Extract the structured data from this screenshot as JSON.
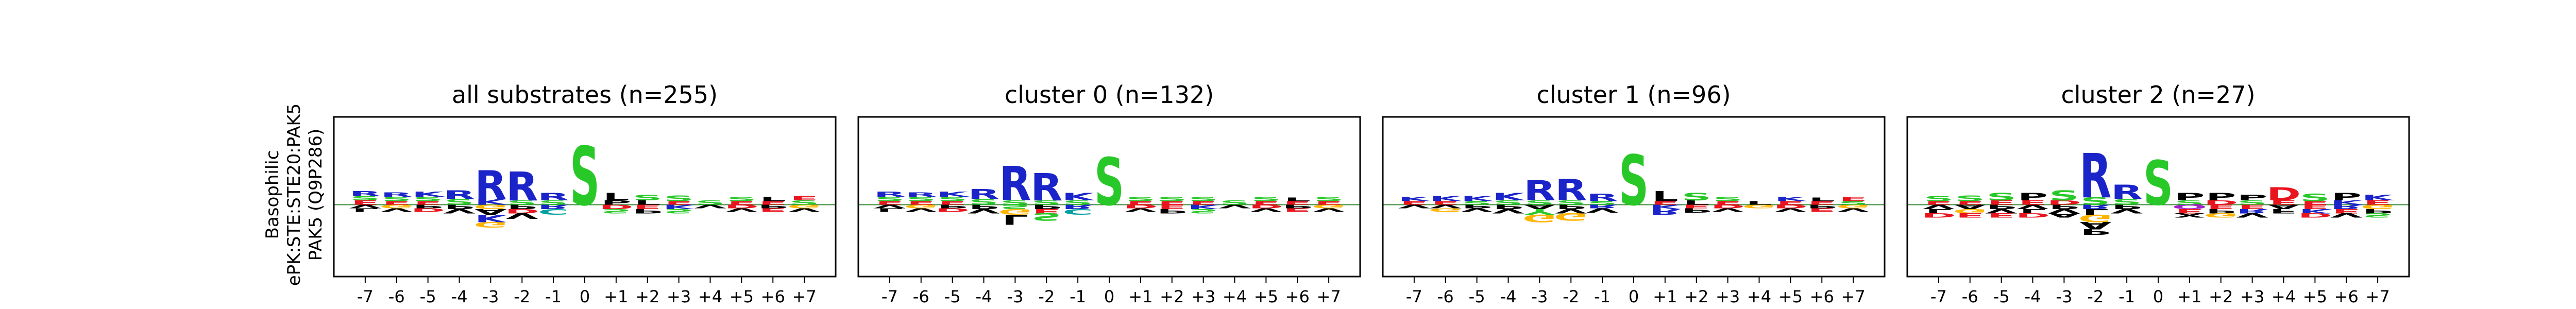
{
  "figure": {
    "ylabel_lines": [
      "Basophilic",
      "ePK:STE:STE20:PAK5",
      "PAK5 (Q9P286)"
    ]
  },
  "colors": {
    "basic_RK": "#1a24c8",
    "acidic_DE": "#e8141e",
    "polar_ST": "#28c828",
    "amide_NQ": "#a020c8",
    "hydrophobic": "#000000",
    "gly": "#ffb400",
    "cys": "#00a0a0",
    "his": "#6464ff",
    "baseline": "#3a8c3a",
    "frame": "#000000"
  },
  "chart_data": [
    {
      "type": "sequence-logo",
      "title": "all substrates (n=255)",
      "x": [
        "-7",
        "-6",
        "-5",
        "-4",
        "-3",
        "-2",
        "-1",
        "0",
        "+1",
        "+2",
        "+3",
        "+4",
        "+5",
        "+6",
        "+7"
      ],
      "grid": false,
      "positive": [
        [
          [
            "E",
            0.06
          ],
          [
            "S",
            0.06
          ],
          [
            "R",
            0.07
          ]
        ],
        [
          [
            "E",
            0.05
          ],
          [
            "S",
            0.06
          ],
          [
            "R",
            0.06
          ]
        ],
        [
          [
            "E",
            0.05
          ],
          [
            "S",
            0.06
          ],
          [
            "K",
            0.07
          ]
        ],
        [
          [
            "S",
            0.08
          ],
          [
            "R",
            0.12
          ]
        ],
        [
          [
            "K",
            0.08
          ],
          [
            "R",
            0.4
          ]
        ],
        [
          [
            "S",
            0.06
          ],
          [
            "R",
            0.4
          ]
        ],
        [
          [
            "S",
            0.06
          ],
          [
            "R",
            0.1
          ]
        ],
        [
          [
            "S",
            0.82
          ]
        ],
        [
          [
            "P",
            0.06
          ],
          [
            "L",
            0.1
          ]
        ],
        [
          [
            "L",
            0.06
          ],
          [
            "S",
            0.08
          ]
        ],
        [
          [
            "E",
            0.05
          ],
          [
            "S",
            0.08
          ]
        ],
        [
          [
            "S",
            0.06
          ]
        ],
        [
          [
            "E",
            0.05
          ],
          [
            "S",
            0.06
          ]
        ],
        [
          [
            "E",
            0.05
          ],
          [
            "L",
            0.06
          ]
        ],
        [
          [
            "S",
            0.06
          ],
          [
            "E",
            0.06
          ]
        ]
      ],
      "negative": [
        [
          [
            "V",
            0.05
          ],
          [
            "L",
            0.05
          ]
        ],
        [
          [
            "G",
            0.05
          ],
          [
            "V",
            0.05
          ]
        ],
        [
          [
            "P",
            0.05
          ],
          [
            "D",
            0.05
          ]
        ],
        [
          [
            "P",
            0.06
          ],
          [
            "V",
            0.06
          ]
        ],
        [
          [
            "G",
            0.06
          ],
          [
            "A",
            0.08
          ],
          [
            "K",
            0.1
          ],
          [
            "G",
            0.08
          ]
        ],
        [
          [
            "P",
            0.06
          ],
          [
            "D",
            0.06
          ],
          [
            "V",
            0.08
          ]
        ],
        [
          [
            "R",
            0.06
          ],
          [
            "C",
            0.08
          ]
        ],
        [],
        [
          [
            "D",
            0.06
          ],
          [
            "S",
            0.06
          ]
        ],
        [
          [
            "E",
            0.06
          ],
          [
            "P",
            0.06
          ]
        ],
        [
          [
            "K",
            0.06
          ],
          [
            "S",
            0.06
          ]
        ],
        [
          [
            "V",
            0.05
          ]
        ],
        [
          [
            "D",
            0.05
          ],
          [
            "V",
            0.05
          ]
        ],
        [
          [
            "P",
            0.05
          ],
          [
            "E",
            0.05
          ]
        ],
        [
          [
            "G",
            0.05
          ],
          [
            "V",
            0.05
          ]
        ]
      ]
    },
    {
      "type": "sequence-logo",
      "title": "cluster 0 (n=132)",
      "x": [
        "-7",
        "-6",
        "-5",
        "-4",
        "-3",
        "-2",
        "-1",
        "0",
        "+1",
        "+2",
        "+3",
        "+4",
        "+5",
        "+6",
        "+7"
      ],
      "grid": false,
      "positive": [
        [
          [
            "E",
            0.05
          ],
          [
            "S",
            0.06
          ],
          [
            "R",
            0.07
          ]
        ],
        [
          [
            "E",
            0.05
          ],
          [
            "S",
            0.06
          ],
          [
            "R",
            0.06
          ]
        ],
        [
          [
            "E",
            0.05
          ],
          [
            "S",
            0.06
          ],
          [
            "K",
            0.07
          ]
        ],
        [
          [
            "S",
            0.08
          ],
          [
            "R",
            0.14
          ]
        ],
        [
          [
            "S",
            0.06
          ],
          [
            "R",
            0.48
          ]
        ],
        [
          [
            "S",
            0.06
          ],
          [
            "R",
            0.38
          ]
        ],
        [
          [
            "S",
            0.06
          ],
          [
            "K",
            0.1
          ]
        ],
        [
          [
            "S",
            0.66
          ]
        ],
        [
          [
            "E",
            0.05
          ],
          [
            "S",
            0.06
          ]
        ],
        [
          [
            "E",
            0.05
          ],
          [
            "S",
            0.06
          ]
        ],
        [
          [
            "E",
            0.05
          ],
          [
            "S",
            0.06
          ]
        ],
        [
          [
            "S",
            0.06
          ]
        ],
        [
          [
            "E",
            0.05
          ],
          [
            "S",
            0.06
          ]
        ],
        [
          [
            "E",
            0.05
          ],
          [
            "L",
            0.05
          ]
        ],
        [
          [
            "E",
            0.05
          ],
          [
            "S",
            0.06
          ]
        ]
      ],
      "negative": [
        [
          [
            "V",
            0.05
          ],
          [
            "L",
            0.05
          ]
        ],
        [
          [
            "G",
            0.05
          ],
          [
            "V",
            0.05
          ]
        ],
        [
          [
            "P",
            0.05
          ],
          [
            "D",
            0.05
          ]
        ],
        [
          [
            "P",
            0.06
          ],
          [
            "V",
            0.06
          ]
        ],
        [
          [
            "S",
            0.06
          ],
          [
            "G",
            0.08
          ],
          [
            "L",
            0.14
          ]
        ],
        [
          [
            "P",
            0.06
          ],
          [
            "E",
            0.06
          ],
          [
            "S",
            0.1
          ]
        ],
        [
          [
            "R",
            0.06
          ],
          [
            "C",
            0.08
          ]
        ],
        [],
        [
          [
            "D",
            0.05
          ],
          [
            "V",
            0.05
          ]
        ],
        [
          [
            "E",
            0.06
          ],
          [
            "P",
            0.06
          ]
        ],
        [
          [
            "K",
            0.06
          ],
          [
            "S",
            0.06
          ]
        ],
        [
          [
            "V",
            0.05
          ]
        ],
        [
          [
            "D",
            0.05
          ],
          [
            "V",
            0.05
          ]
        ],
        [
          [
            "P",
            0.05
          ],
          [
            "E",
            0.05
          ]
        ],
        [
          [
            "G",
            0.05
          ],
          [
            "V",
            0.05
          ]
        ]
      ]
    },
    {
      "type": "sequence-logo",
      "title": "cluster 1 (n=96)",
      "x": [
        "-7",
        "-6",
        "-5",
        "-4",
        "-3",
        "-2",
        "-1",
        "0",
        "+1",
        "+2",
        "+3",
        "+4",
        "+5",
        "+6",
        "+7"
      ],
      "grid": false,
      "positive": [
        [
          [
            "E",
            0.05
          ],
          [
            "K",
            0.06
          ]
        ],
        [
          [
            "E",
            0.05
          ],
          [
            "K",
            0.07
          ]
        ],
        [
          [
            "S",
            0.05
          ],
          [
            "K",
            0.07
          ]
        ],
        [
          [
            "S",
            0.06
          ],
          [
            "K",
            0.1
          ]
        ],
        [
          [
            "S",
            0.06
          ],
          [
            "R",
            0.28
          ]
        ],
        [
          [
            "S",
            0.06
          ],
          [
            "R",
            0.3
          ]
        ],
        [
          [
            "S",
            0.05
          ],
          [
            "R",
            0.1
          ]
        ],
        [
          [
            "S",
            0.7
          ]
        ],
        [
          [
            "E",
            0.05
          ],
          [
            "L",
            0.14
          ]
        ],
        [
          [
            "L",
            0.06
          ],
          [
            "S",
            0.1
          ]
        ],
        [
          [
            "E",
            0.05
          ],
          [
            "S",
            0.06
          ]
        ],
        [
          [
            "L",
            0.05
          ]
        ],
        [
          [
            "E",
            0.05
          ],
          [
            "K",
            0.06
          ]
        ],
        [
          [
            "E",
            0.05
          ],
          [
            "L",
            0.05
          ]
        ],
        [
          [
            "S",
            0.05
          ],
          [
            "E",
            0.06
          ]
        ]
      ],
      "negative": [
        [
          [
            "V",
            0.05
          ]
        ],
        [
          [
            "V",
            0.05
          ],
          [
            "G",
            0.05
          ]
        ],
        [
          [
            "P",
            0.05
          ],
          [
            "V",
            0.05
          ]
        ],
        [
          [
            "P",
            0.06
          ],
          [
            "V",
            0.06
          ]
        ],
        [
          [
            "A",
            0.06
          ],
          [
            "Y",
            0.08
          ],
          [
            "G",
            0.1
          ]
        ],
        [
          [
            "P",
            0.06
          ],
          [
            "V",
            0.06
          ],
          [
            "G",
            0.1
          ]
        ],
        [
          [
            "R",
            0.05
          ],
          [
            "V",
            0.06
          ]
        ],
        [],
        [
          [
            "K",
            0.06
          ],
          [
            "R",
            0.08
          ]
        ],
        [
          [
            "E",
            0.05
          ],
          [
            "P",
            0.06
          ]
        ],
        [
          [
            "D",
            0.05
          ],
          [
            "V",
            0.05
          ]
        ],
        [
          [
            "G",
            0.05
          ]
        ],
        [
          [
            "D",
            0.05
          ],
          [
            "V",
            0.05
          ]
        ],
        [
          [
            "P",
            0.05
          ],
          [
            "E",
            0.05
          ]
        ],
        [
          [
            "G",
            0.05
          ],
          [
            "V",
            0.05
          ]
        ]
      ]
    },
    {
      "type": "sequence-logo",
      "title": "cluster 2 (n=27)",
      "x": [
        "-7",
        "-6",
        "-5",
        "-4",
        "-3",
        "-2",
        "-1",
        "0",
        "+1",
        "+2",
        "+3",
        "+4",
        "+5",
        "+6",
        "+7"
      ],
      "grid": false,
      "positive": [
        [
          [
            "E",
            0.05
          ],
          [
            "S",
            0.07
          ]
        ],
        [
          [
            "E",
            0.05
          ],
          [
            "S",
            0.08
          ]
        ],
        [
          [
            "E",
            0.06
          ],
          [
            "S",
            0.1
          ]
        ],
        [
          [
            "E",
            0.06
          ],
          [
            "P",
            0.1
          ]
        ],
        [
          [
            "D",
            0.06
          ],
          [
            "S",
            0.14
          ]
        ],
        [
          [
            "S",
            0.1
          ],
          [
            "R",
            0.62
          ]
        ],
        [
          [
            "S",
            0.08
          ],
          [
            "R",
            0.2
          ]
        ],
        [
          [
            "S",
            0.62
          ]
        ],
        [
          [
            "S",
            0.06
          ],
          [
            "P",
            0.1
          ]
        ],
        [
          [
            "D",
            0.06
          ],
          [
            "P",
            0.1
          ]
        ],
        [
          [
            "S",
            0.06
          ],
          [
            "P",
            0.08
          ]
        ],
        [
          [
            "E",
            0.06
          ],
          [
            "D",
            0.18
          ]
        ],
        [
          [
            "E",
            0.05
          ],
          [
            "S",
            0.1
          ]
        ],
        [
          [
            "K",
            0.06
          ],
          [
            "P",
            0.1
          ]
        ],
        [
          [
            "E",
            0.06
          ],
          [
            "K",
            0.08
          ]
        ]
      ],
      "negative": [
        [
          [
            "V",
            0.06
          ],
          [
            "L",
            0.06
          ],
          [
            "D",
            0.06
          ]
        ],
        [
          [
            "A",
            0.06
          ],
          [
            "G",
            0.06
          ],
          [
            "E",
            0.06
          ]
        ],
        [
          [
            "P",
            0.06
          ],
          [
            "V",
            0.06
          ],
          [
            "E",
            0.06
          ]
        ],
        [
          [
            "V",
            0.06
          ],
          [
            "L",
            0.06
          ],
          [
            "D",
            0.06
          ]
        ],
        [
          [
            "P",
            0.06
          ],
          [
            "V",
            0.06
          ],
          [
            "A",
            0.06
          ]
        ],
        [
          [
            "R",
            0.06
          ],
          [
            "L",
            0.08
          ],
          [
            "G",
            0.1
          ],
          [
            "A",
            0.1
          ],
          [
            "P",
            0.08
          ]
        ],
        [
          [
            "P",
            0.06
          ],
          [
            "V",
            0.06
          ]
        ],
        [],
        [
          [
            "Q",
            0.06
          ],
          [
            "E",
            0.06
          ],
          [
            "X",
            0.06
          ]
        ],
        [
          [
            "E",
            0.06
          ],
          [
            "P",
            0.06
          ],
          [
            "G",
            0.06
          ]
        ],
        [
          [
            "E",
            0.06
          ],
          [
            "R",
            0.06
          ],
          [
            "V",
            0.06
          ]
        ],
        [
          [
            "A",
            0.06
          ],
          [
            "F",
            0.06
          ]
        ],
        [
          [
            "E",
            0.06
          ],
          [
            "K",
            0.06
          ],
          [
            "D",
            0.06
          ]
        ],
        [
          [
            "R",
            0.06
          ],
          [
            "E",
            0.06
          ],
          [
            "V",
            0.06
          ]
        ],
        [
          [
            "G",
            0.06
          ],
          [
            "P",
            0.06
          ],
          [
            "S",
            0.06
          ]
        ]
      ]
    }
  ]
}
